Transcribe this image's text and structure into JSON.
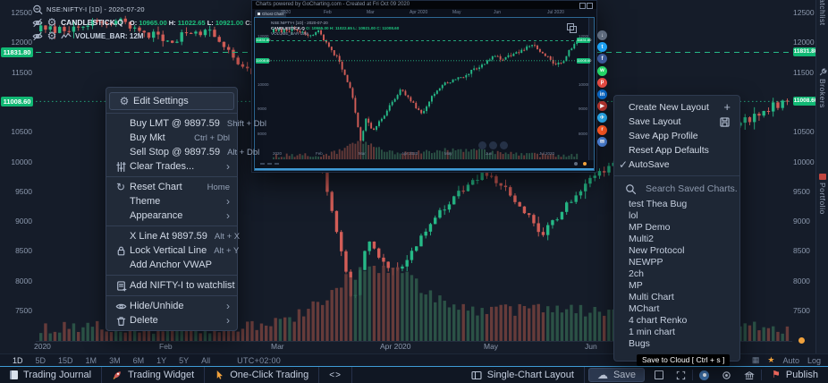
{
  "header": {
    "symbol": "NSE:NIFTY-I [1D] - 2020-07-20",
    "study": "CANDLESTICK.Q",
    "o_label": "O:",
    "o": "10965.00",
    "h_label": "H:",
    "h": "11022.65",
    "l_label": "L:",
    "l": "10921.00",
    "c_label": "C:",
    "c": "11008.6",
    "volume": "VOLUME_BAR: 12M"
  },
  "chart": {
    "y_ticks": [
      "12500",
      "12000",
      "11500",
      "10500",
      "10000",
      "9500",
      "9000",
      "8500",
      "8000",
      "7500"
    ],
    "x_labels": [
      "2020",
      "Feb",
      "Mar",
      "Apr 2020",
      "May",
      "Jun"
    ],
    "markers": [
      "11831.80",
      "11008.60"
    ]
  },
  "context_menu": {
    "items": [
      {
        "icon": "gear",
        "label": "Edit Settings",
        "boxed": true
      },
      {
        "divider": true
      },
      {
        "label": "Buy LMT @ 9897.59",
        "shortcut": "Shift + Dbl"
      },
      {
        "label": "Buy Mkt",
        "shortcut": "Ctrl + Dbl"
      },
      {
        "label": "Sell Stop @ 9897.59",
        "shortcut": "Alt + Dbl"
      },
      {
        "icon": "sliders",
        "label": "Clear Trades...",
        "submenu": true
      },
      {
        "divider": true
      },
      {
        "icon": "refresh",
        "label": "Reset Chart",
        "shortcut": "Home"
      },
      {
        "label": "Theme",
        "submenu": true
      },
      {
        "label": "Appearance",
        "submenu": true
      },
      {
        "divider": true
      },
      {
        "label": "X Line At 9897.59",
        "shortcut": "Alt + X"
      },
      {
        "icon": "lock",
        "label": "Lock Vertical Line",
        "shortcut": "Alt + Y"
      },
      {
        "label": "Add Anchor VWAP"
      },
      {
        "divider": true
      },
      {
        "icon": "note-add",
        "label": "Add NIFTY-I to watchlist"
      },
      {
        "divider": true
      },
      {
        "icon": "eye",
        "label": "Hide/Unhide",
        "submenu": true
      },
      {
        "icon": "trash",
        "label": "Delete",
        "submenu": true
      }
    ]
  },
  "layout_menu": {
    "items": [
      {
        "label": "Create New Layout",
        "right_icon": "plus"
      },
      {
        "label": "Save Layout",
        "right_icon": "floppy"
      },
      {
        "label": "Save App Profile"
      },
      {
        "label": "Reset App Defaults"
      },
      {
        "label": "AutoSave",
        "left_icon": "check"
      }
    ]
  },
  "saved_charts": {
    "placeholder": "Search Saved Charts.",
    "items": [
      "test Thea Bug",
      "lol",
      "MP Demo",
      "Multi2",
      "New Protocol",
      "NEWPP",
      "2ch",
      "MP",
      "Multi Chart",
      "MChart",
      "4 chart Renko",
      "1 min chart",
      "Bugs"
    ]
  },
  "popup": {
    "title": "Charts powered by GoCharting.com  -  Created at Fri Oct 09 2020",
    "tab": "Ghost Chart",
    "symbol": "NSE:NIFTY-I [1D] - 2020-07-20",
    "study_name": "CANDLESTICK.Q",
    "study_vals": "O: 10965.00  H: 11022.65  L: 10921.00  C: 11008.60",
    "volume": "VOLUME_BAR 12M",
    "x_labels": [
      "2020",
      "Feb",
      "Mar",
      "Apr 2020",
      "May",
      "Jun",
      "Jul 2020"
    ],
    "y_ticks": [
      "12000",
      "11000",
      "10000",
      "9000",
      "8000"
    ],
    "markers": [
      "11831.80",
      "11008.60"
    ]
  },
  "share": {
    "icons": [
      {
        "name": "download",
        "color": "#5f6b7d",
        "glyph": "↓"
      },
      {
        "name": "twitter",
        "color": "#1da1f2",
        "glyph": "t"
      },
      {
        "name": "facebook",
        "color": "#3b5998",
        "glyph": "f"
      },
      {
        "name": "whatsapp",
        "color": "#25d366",
        "glyph": "w"
      },
      {
        "name": "pinterest",
        "color": "#e24a42",
        "glyph": "p"
      },
      {
        "name": "linkedin",
        "color": "#0a66c2",
        "glyph": "in"
      },
      {
        "name": "youtube",
        "color": "#b3342e",
        "glyph": "▶"
      },
      {
        "name": "telegram",
        "color": "#2aabee",
        "glyph": "✈"
      },
      {
        "name": "reddit",
        "color": "#ff5722",
        "glyph": "r"
      },
      {
        "name": "mail",
        "color": "#4a7fd4",
        "glyph": "✉"
      }
    ]
  },
  "timeframe_bar": {
    "ranges": [
      "1D",
      "5D",
      "15D",
      "1M",
      "3M",
      "6M",
      "1Y",
      "5Y",
      "All"
    ],
    "timezone": "UTC+02:00",
    "auto": "Auto",
    "log": "Log"
  },
  "footer": {
    "trading_journal": "Trading Journal",
    "trading_widget": "Trading Widget",
    "one_click": "One-Click Trading",
    "code": "<>",
    "single_chart": "Single-Chart Layout",
    "save": "Save",
    "publish": "Publish"
  },
  "tooltip": {
    "text": "Save to Cloud [ Ctrl + s ]"
  },
  "side_tabs": [
    {
      "label": "Watchlist"
    },
    {
      "label": "Brokers"
    },
    {
      "label": "Portfolio"
    }
  ],
  "colors": {
    "accent_blue": "#3f9bd6",
    "candle_up": "#26b987",
    "candle_down": "#d25d57",
    "price_tag_green": "#11b874",
    "orange": "#f0a13c"
  }
}
